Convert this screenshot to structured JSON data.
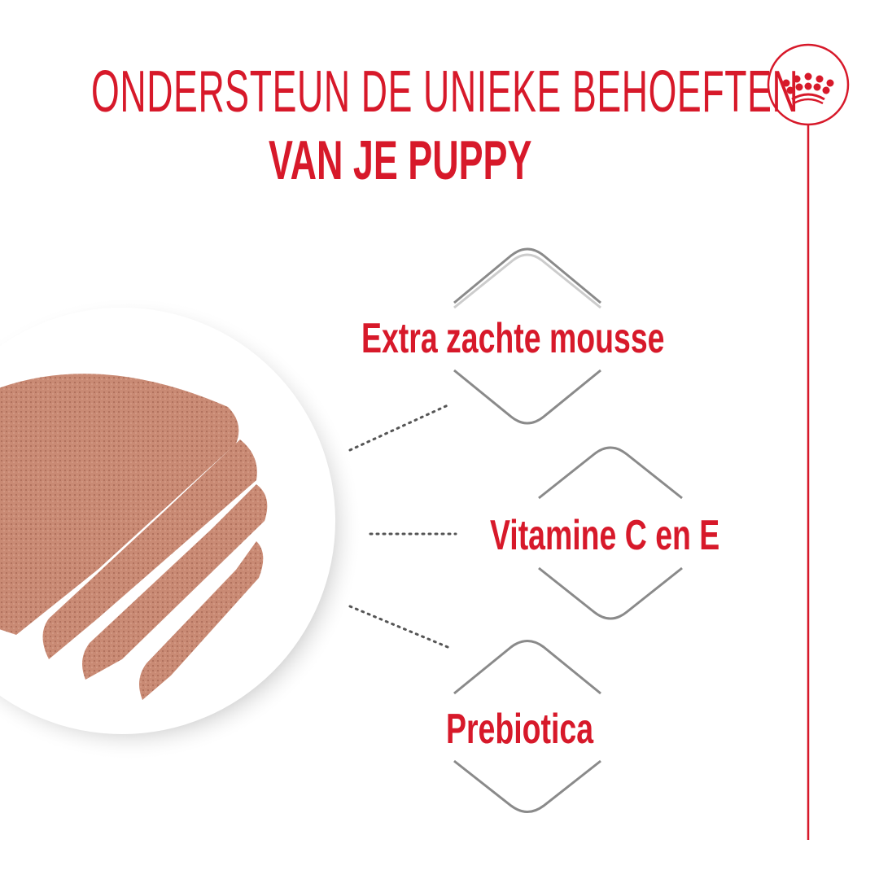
{
  "headline": {
    "line1": "ONDERSTEUN DE UNIEKE BEHOEFTEN",
    "line2": "VAN JE PUPPY"
  },
  "brand": {
    "logo_icon": "crown-icon",
    "color": "#d7192a"
  },
  "features": [
    {
      "label": "Extra zachte mousse"
    },
    {
      "label": "Vitamine C en E"
    },
    {
      "label": "Prebiotica"
    }
  ],
  "colors": {
    "accent": "#d7192a",
    "badge_outline": "#8a8a8a",
    "food": "#c98a74"
  }
}
